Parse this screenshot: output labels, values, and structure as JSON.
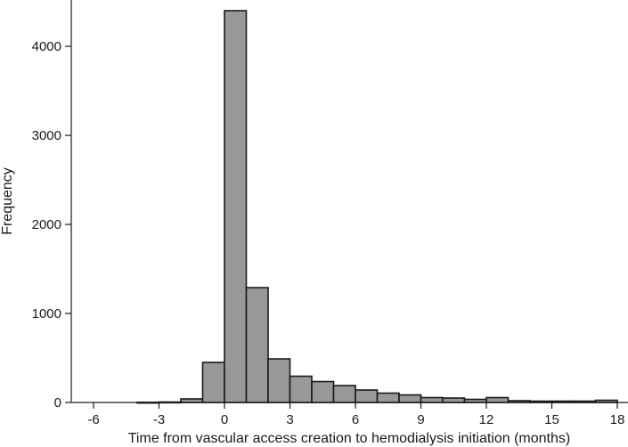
{
  "chart_data": {
    "type": "bar",
    "title": "",
    "xlabel": "Time from vascular access creation to hemodialysis initiation (months)",
    "ylabel": "Frequency",
    "xlim": [
      -7,
      18.5
    ],
    "ylim": [
      0,
      4500
    ],
    "x_ticks": [
      -6,
      -3,
      0,
      3,
      6,
      9,
      12,
      15,
      18
    ],
    "x_tick_labels": [
      "-6",
      "-3",
      "0",
      "3",
      "6",
      "9",
      "12",
      "15",
      "18"
    ],
    "y_ticks": [
      0,
      1000,
      2000,
      3000,
      4000
    ],
    "y_tick_labels": [
      "0",
      "1000",
      "2000",
      "3000",
      "4000"
    ],
    "bin_width": 1,
    "bins": [
      {
        "x0": -7,
        "x1": -6,
        "value": 0
      },
      {
        "x0": -6,
        "x1": -5,
        "value": 0
      },
      {
        "x0": -5,
        "x1": -4,
        "value": 0
      },
      {
        "x0": -4,
        "x1": -3,
        "value": 2
      },
      {
        "x0": -3,
        "x1": -2,
        "value": 5
      },
      {
        "x0": -2,
        "x1": -1,
        "value": 40
      },
      {
        "x0": -1,
        "x1": 0,
        "value": 450
      },
      {
        "x0": 0,
        "x1": 1,
        "value": 4400
      },
      {
        "x0": 1,
        "x1": 2,
        "value": 1290
      },
      {
        "x0": 2,
        "x1": 3,
        "value": 490
      },
      {
        "x0": 3,
        "x1": 4,
        "value": 295
      },
      {
        "x0": 4,
        "x1": 5,
        "value": 235
      },
      {
        "x0": 5,
        "x1": 6,
        "value": 190
      },
      {
        "x0": 6,
        "x1": 7,
        "value": 140
      },
      {
        "x0": 7,
        "x1": 8,
        "value": 105
      },
      {
        "x0": 8,
        "x1": 9,
        "value": 85
      },
      {
        "x0": 9,
        "x1": 10,
        "value": 55
      },
      {
        "x0": 10,
        "x1": 11,
        "value": 50
      },
      {
        "x0": 11,
        "x1": 12,
        "value": 35
      },
      {
        "x0": 12,
        "x1": 13,
        "value": 55
      },
      {
        "x0": 13,
        "x1": 14,
        "value": 20
      },
      {
        "x0": 14,
        "x1": 15,
        "value": 15
      },
      {
        "x0": 15,
        "x1": 16,
        "value": 15
      },
      {
        "x0": 16,
        "x1": 17,
        "value": 15
      },
      {
        "x0": 17,
        "x1": 18,
        "value": 25
      }
    ],
    "bar_color": "#98989a",
    "edge_color": "#1a1a1a",
    "grid": false,
    "legend": "none"
  }
}
